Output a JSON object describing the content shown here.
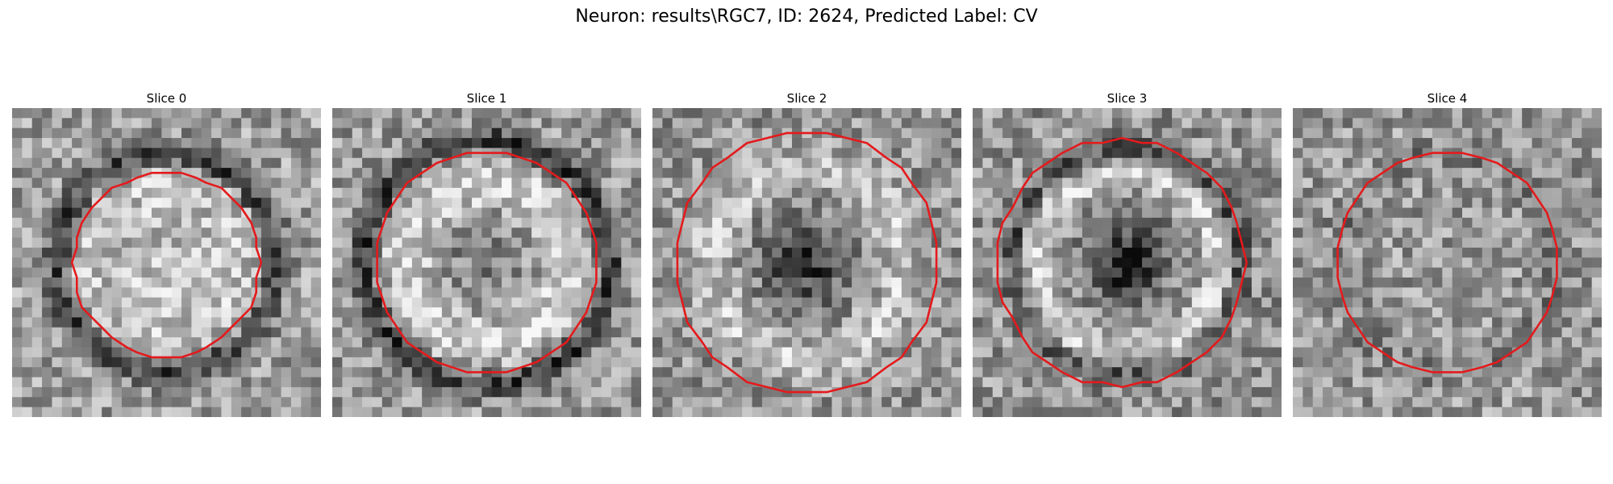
{
  "figure": {
    "title": "Neuron: results\\RGC7, ID: 2624, Predicted Label: CV"
  },
  "slices": [
    {
      "label": "Slice 0",
      "pattern": "bright-filled-disk",
      "seed": 11,
      "radius": 9.3,
      "clipped": false
    },
    {
      "label": "Slice 1",
      "pattern": "bright-ring-dark-rim",
      "seed": 23,
      "radius": 11.2,
      "clipped": false
    },
    {
      "label": "Slice 2",
      "pattern": "ring-dark-center",
      "seed": 37,
      "radius": 13.2,
      "clipped": true
    },
    {
      "label": "Slice 3",
      "pattern": "bright-ring-dark-center",
      "seed": 41,
      "radius": 12.4,
      "clipped": true
    },
    {
      "label": "Slice 4",
      "pattern": "faint-disk",
      "seed": 53,
      "radius": 11.0,
      "clipped": false
    }
  ],
  "colors": {
    "contour": "#e41a1c",
    "background": "#ffffff"
  }
}
